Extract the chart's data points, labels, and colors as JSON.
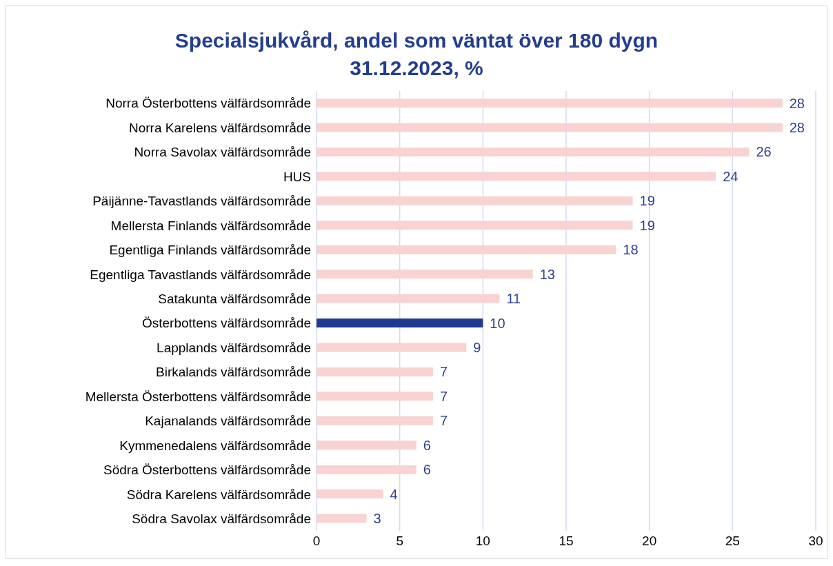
{
  "chart_data": {
    "type": "bar",
    "orientation": "horizontal",
    "title": "Specialsjukvård, andel som väntat över 180 dygn\n31.12.2023, %",
    "categories": [
      "Norra Österbottens välfärdsområde",
      "Norra Karelens välfärdsområde",
      "Norra Savolax välfärdsområde",
      "HUS",
      "Päijänne-Tavastlands välfärdsområde",
      "Mellersta Finlands välfärdsområde",
      "Egentliga Finlands välfärdsområde",
      "Egentliga Tavastlands välfärdsområde",
      "Satakunta välfärdsområde",
      "Österbottens välfärdsområde",
      "Lapplands välfärdsområde",
      "Birkalands välfärdsområde",
      "Mellersta Österbottens välfärdsområde",
      "Kajanalands välfärdsområde",
      "Kymmenedalens välfärdsområde",
      "Södra Österbottens välfärdsområde",
      "Södra Karelens välfärdsområde",
      "Södra Savolax välfärdsområde"
    ],
    "values": [
      28,
      28,
      26,
      24,
      19,
      19,
      18,
      13,
      11,
      10,
      9,
      7,
      7,
      7,
      6,
      6,
      4,
      3
    ],
    "colors": [
      "#f9d2d2",
      "#f9d2d2",
      "#f9d2d2",
      "#f9d2d2",
      "#f9d2d2",
      "#f9d2d2",
      "#f9d2d2",
      "#f9d2d2",
      "#f9d2d2",
      "#1f3a8f",
      "#f9d2d2",
      "#f9d2d2",
      "#f9d2d2",
      "#f9d2d2",
      "#f9d2d2",
      "#f9d2d2",
      "#f9d2d2",
      "#f9d2d2"
    ],
    "xlim": [
      0,
      30
    ],
    "xticks": [
      0,
      5,
      10,
      15,
      20,
      25,
      30
    ],
    "grid": "x",
    "data_labels": true,
    "legend": false
  }
}
